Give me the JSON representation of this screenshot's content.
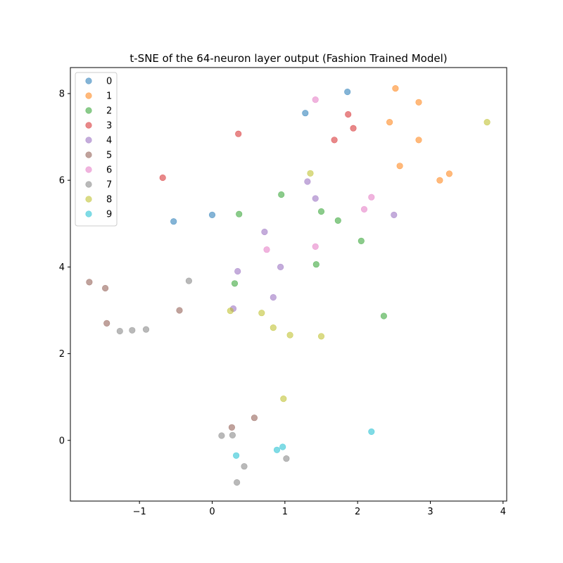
{
  "chart_data": {
    "type": "scatter",
    "title": "t-SNE of the 64-neuron layer output (Fashion Trained Model)",
    "xlabel": "",
    "ylabel": "",
    "xlim": [
      -1.95,
      4.05
    ],
    "ylim": [
      -1.4,
      8.6
    ],
    "xticks": [
      -1,
      0,
      1,
      2,
      3,
      4
    ],
    "yticks": [
      0,
      2,
      4,
      6,
      8
    ],
    "xtick_labels": [
      "−1",
      "0",
      "1",
      "2",
      "3",
      "4"
    ],
    "ytick_labels": [
      "0",
      "2",
      "4",
      "6",
      "8"
    ],
    "legend_position": "upper-left",
    "grid": false,
    "series": [
      {
        "name": "0",
        "color": "#1f77b4",
        "points": [
          [
            1.86,
            8.04
          ],
          [
            1.28,
            7.55
          ],
          [
            0.0,
            5.2
          ],
          [
            -0.53,
            5.05
          ]
        ]
      },
      {
        "name": "1",
        "color": "#ff7f0e",
        "points": [
          [
            2.52,
            8.12
          ],
          [
            2.84,
            7.8
          ],
          [
            2.44,
            7.34
          ],
          [
            2.84,
            6.93
          ],
          [
            2.58,
            6.33
          ],
          [
            3.26,
            6.15
          ],
          [
            3.13,
            6.0
          ]
        ]
      },
      {
        "name": "2",
        "color": "#2ca02c",
        "points": [
          [
            0.95,
            5.67
          ],
          [
            0.37,
            5.22
          ],
          [
            1.5,
            5.28
          ],
          [
            1.73,
            5.07
          ],
          [
            2.05,
            4.6
          ],
          [
            1.43,
            4.06
          ],
          [
            0.31,
            3.62
          ],
          [
            2.36,
            2.87
          ]
        ]
      },
      {
        "name": "3",
        "color": "#d62728",
        "points": [
          [
            1.87,
            7.52
          ],
          [
            1.94,
            7.2
          ],
          [
            0.36,
            7.07
          ],
          [
            1.68,
            6.93
          ],
          [
            -0.68,
            6.06
          ]
        ]
      },
      {
        "name": "4",
        "color": "#9467bd",
        "points": [
          [
            1.31,
            5.97
          ],
          [
            1.42,
            5.58
          ],
          [
            2.5,
            5.2
          ],
          [
            0.72,
            4.81
          ],
          [
            0.94,
            4.0
          ],
          [
            0.35,
            3.9
          ],
          [
            0.84,
            3.3
          ],
          [
            0.29,
            3.04
          ]
        ]
      },
      {
        "name": "5",
        "color": "#8c564b",
        "points": [
          [
            -1.69,
            3.65
          ],
          [
            -1.47,
            3.51
          ],
          [
            -0.45,
            3.0
          ],
          [
            -1.45,
            2.7
          ],
          [
            0.58,
            0.52
          ],
          [
            0.27,
            0.3
          ]
        ]
      },
      {
        "name": "6",
        "color": "#e377c2",
        "points": [
          [
            1.42,
            7.86
          ],
          [
            2.19,
            5.61
          ],
          [
            2.09,
            5.33
          ],
          [
            1.42,
            4.47
          ],
          [
            0.75,
            4.4
          ]
        ]
      },
      {
        "name": "7",
        "color": "#7f7f7f",
        "points": [
          [
            -0.32,
            3.68
          ],
          [
            -0.91,
            2.56
          ],
          [
            -1.1,
            2.54
          ],
          [
            -1.27,
            2.52
          ],
          [
            0.13,
            0.11
          ],
          [
            0.28,
            0.12
          ],
          [
            1.02,
            -0.42
          ],
          [
            0.44,
            -0.6
          ],
          [
            0.34,
            -0.97
          ]
        ]
      },
      {
        "name": "8",
        "color": "#bcbd22",
        "points": [
          [
            3.78,
            7.34
          ],
          [
            1.35,
            6.16
          ],
          [
            0.25,
            2.99
          ],
          [
            0.68,
            2.94
          ],
          [
            0.84,
            2.6
          ],
          [
            1.07,
            2.43
          ],
          [
            1.5,
            2.4
          ],
          [
            0.98,
            0.96
          ]
        ]
      },
      {
        "name": "9",
        "color": "#17becf",
        "points": [
          [
            2.19,
            0.2
          ],
          [
            0.97,
            -0.15
          ],
          [
            0.89,
            -0.22
          ],
          [
            0.33,
            -0.35
          ]
        ]
      }
    ]
  }
}
